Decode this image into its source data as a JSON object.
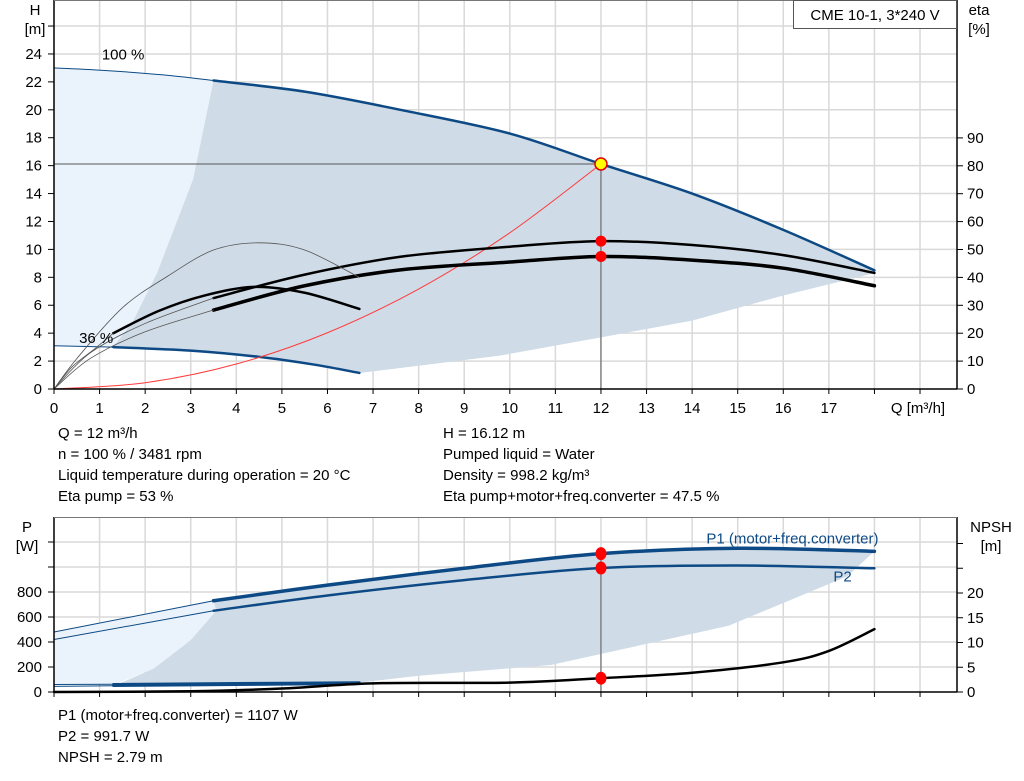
{
  "colors": {
    "curve_blue": "#0d4a85",
    "region_gray": "#cfdbe6",
    "region_light": "#eaf3fc",
    "grid": "#d9d9d9",
    "duty_point_fill": "#ffff00",
    "duty_point_stroke": "#e00000",
    "marker_red": "#ff0000",
    "system_curve": "#ff3b3b"
  },
  "model_label": "CME 10-1, 3*240 V",
  "chart_data": [
    {
      "type": "line",
      "xlabel": "Q [m³/h]",
      "ylabel_top": "H",
      "ylabel_unit": "[m]",
      "y2label_top": "eta",
      "y2label_unit": "[%]",
      "xlim": [
        0,
        19.8
      ],
      "ylim": [
        0,
        27.8
      ],
      "y2lim": [
        0,
        139
      ],
      "grid": true,
      "x_ticks": [
        "0",
        "1",
        "2",
        "3",
        "4",
        "5",
        "6",
        "7",
        "8",
        "9",
        "10",
        "11",
        "12",
        "13",
        "14",
        "15",
        "16",
        "17"
      ],
      "y_ticks": [
        "0",
        "2",
        "4",
        "6",
        "8",
        "10",
        "12",
        "14",
        "16",
        "18",
        "20",
        "22",
        "24"
      ],
      "y2_ticks": [
        "0",
        "10",
        "20",
        "30",
        "40",
        "50",
        "60",
        "70",
        "80",
        "90"
      ],
      "regions": [
        {
          "fill": "light",
          "axis": "left",
          "points": [
            [
              0,
              23
            ],
            [
              1.2,
              22.8
            ],
            [
              2.4,
              22.5
            ],
            [
              3.5,
              22.1
            ],
            [
              3.05,
              15
            ],
            [
              2.26,
              8.3
            ],
            [
              1.74,
              4.9
            ],
            [
              1.3,
              3.0
            ],
            [
              0,
              3.1
            ]
          ]
        },
        {
          "fill": "gray",
          "axis": "left",
          "points": [
            [
              3.5,
              22.1
            ],
            [
              5.5,
              21.3
            ],
            [
              7.6,
              20
            ],
            [
              10,
              18.3
            ],
            [
              12,
              16.12
            ],
            [
              14,
              14.0
            ],
            [
              16,
              11.4
            ],
            [
              18,
              8.5
            ],
            [
              18,
              8.3
            ],
            [
              16,
              6.7
            ],
            [
              15,
              5.8
            ],
            [
              14,
              4.9
            ],
            [
              12,
              3.7
            ],
            [
              9.8,
              2.4
            ],
            [
              7.6,
              1.5
            ],
            [
              6.7,
              1.15
            ],
            [
              4.5,
              2.3
            ],
            [
              3,
              2.75
            ],
            [
              1.3,
              3.0
            ],
            [
              1.74,
              4.9
            ],
            [
              2.26,
              8.3
            ],
            [
              3.05,
              15
            ]
          ]
        }
      ],
      "series": [
        {
          "name": "100 %",
          "axis": "left",
          "style": "blue-thin",
          "points": [
            [
              0,
              23
            ],
            [
              1.2,
              22.8
            ],
            [
              2.4,
              22.5
            ],
            [
              3.5,
              22.1
            ]
          ]
        },
        {
          "name": "100 %",
          "axis": "left",
          "style": "blue-thick",
          "points": [
            [
              3.5,
              22.1
            ],
            [
              5.5,
              21.3
            ],
            [
              7.6,
              20
            ],
            [
              10,
              18.3
            ],
            [
              12,
              16.12
            ],
            [
              14,
              14.0
            ],
            [
              16,
              11.4
            ],
            [
              18,
              8.5
            ]
          ]
        },
        {
          "name": "36 %",
          "axis": "left",
          "style": "blue-thin",
          "points": [
            [
              0,
              3.1
            ],
            [
              1.3,
              3.0
            ]
          ]
        },
        {
          "name": "36 %",
          "axis": "left",
          "style": "blue-thick",
          "points": [
            [
              1.3,
              3.0
            ],
            [
              3,
              2.75
            ],
            [
              4.5,
              2.3
            ],
            [
              5.7,
              1.75
            ],
            [
              6.7,
              1.15
            ]
          ]
        },
        {
          "axis": "left",
          "style": "system",
          "points": [
            [
              0,
              0
            ],
            [
              2,
              0.45
            ],
            [
              4,
              1.79
            ],
            [
              6,
              4.03
            ],
            [
              8,
              7.16
            ],
            [
              10,
              11.19
            ],
            [
              12,
              16.12
            ]
          ]
        },
        {
          "axis": "right",
          "style": "black-thick",
          "points": [
            [
              3.5,
              32.6
            ],
            [
              5.5,
              41
            ],
            [
              7.6,
              47.4
            ],
            [
              10,
              51
            ],
            [
              12,
              53
            ],
            [
              14,
              51.6
            ],
            [
              16,
              48
            ],
            [
              18,
              41.6
            ]
          ]
        },
        {
          "axis": "right",
          "style": "black-thicker",
          "points": [
            [
              3.5,
              28.3
            ],
            [
              5.5,
              37
            ],
            [
              7.6,
              42.7
            ],
            [
              10,
              45.5
            ],
            [
              12,
              47.5
            ],
            [
              14,
              46.2
            ],
            [
              16,
              43.3
            ],
            [
              18,
              37
            ]
          ]
        },
        {
          "axis": "right",
          "style": "black-thick",
          "points": [
            [
              1.3,
              20
            ],
            [
              2.3,
              28
            ],
            [
              3.3,
              33.5
            ],
            [
              4.4,
              36.6
            ],
            [
              5.5,
              34.5
            ],
            [
              6.7,
              28.7
            ]
          ]
        },
        {
          "axis": "right",
          "style": "gray-thin",
          "points": [
            [
              0,
              0
            ],
            [
              0.5,
              10.9
            ],
            [
              1.5,
              29.1
            ],
            [
              2.5,
              40.5
            ],
            [
              3.5,
              49.8
            ],
            [
              4.5,
              52.4
            ],
            [
              5.5,
              49.8
            ],
            [
              6.7,
              40
            ]
          ]
        },
        {
          "axis": "right",
          "style": "gray-thin",
          "points": [
            [
              0,
              0
            ],
            [
              0.4,
              8
            ],
            [
              0.9,
              14.5
            ],
            [
              1.3,
              20
            ]
          ]
        },
        {
          "axis": "right",
          "style": "gray-thin",
          "points": [
            [
              0,
              0
            ],
            [
              0.8,
              13
            ],
            [
              2,
              23.5
            ],
            [
              3.5,
              32.6
            ]
          ]
        },
        {
          "axis": "right",
          "style": "gray-thin",
          "points": [
            [
              0,
              0
            ],
            [
              0.8,
              11
            ],
            [
              2,
              20.5
            ],
            [
              3.5,
              28.3
            ]
          ]
        }
      ],
      "duty_point": {
        "Q": 12,
        "H": 16.12
      },
      "markers": [
        {
          "axis": "right",
          "x": 12,
          "y": 53
        },
        {
          "axis": "right",
          "x": 12,
          "y": 47.5
        }
      ],
      "curve_labels": [
        {
          "text": "100 %",
          "x": 1.05,
          "y": 23.6
        },
        {
          "text": "36 %",
          "x": 0.55,
          "y": 3.3
        }
      ]
    },
    {
      "type": "line",
      "ylabel_top": "P",
      "ylabel_unit": "[W]",
      "y2label_top": "NPSH",
      "y2label_unit": "[m]",
      "xlim": [
        0,
        19.8
      ],
      "ylim": [
        0,
        1400
      ],
      "y2lim": [
        0,
        35
      ],
      "grid": true,
      "y_ticks": [
        "0",
        "200",
        "400",
        "600",
        "800"
      ],
      "y2_ticks": [
        "0",
        "5",
        "10",
        "15",
        "20"
      ],
      "regions": [
        {
          "fill": "light",
          "axis": "left",
          "points": [
            [
              0,
              480
            ],
            [
              1.75,
              605
            ],
            [
              3.5,
              730
            ],
            [
              3.56,
              650
            ],
            [
              3.0,
              415
            ],
            [
              2.2,
              190
            ],
            [
              1.4,
              70
            ],
            [
              1.3,
              62
            ],
            [
              0,
              60
            ]
          ]
        },
        {
          "fill": "gray",
          "axis": "left",
          "points": [
            [
              3.5,
              730
            ],
            [
              6,
              855
            ],
            [
              9,
              990
            ],
            [
              12,
              1107
            ],
            [
              15,
              1150
            ],
            [
              18,
              1125
            ],
            [
              17.4,
              925
            ],
            [
              14.8,
              530
            ],
            [
              10.9,
              216
            ],
            [
              8,
              130
            ],
            [
              6.7,
              75
            ],
            [
              4,
              68
            ],
            [
              1.4,
              62
            ],
            [
              2.2,
              190
            ],
            [
              3.0,
              415
            ],
            [
              3.56,
              650
            ]
          ]
        }
      ],
      "series": [
        {
          "name": "P1 (motor+freq.converter)",
          "axis": "left",
          "style": "blue-thin",
          "points": [
            [
              0,
              480
            ],
            [
              3.5,
              730
            ]
          ]
        },
        {
          "name": "P1 (motor+freq.converter)",
          "axis": "left",
          "style": "blue-thicker",
          "points": [
            [
              3.5,
              730
            ],
            [
              6,
              855
            ],
            [
              9,
              990
            ],
            [
              12,
              1107
            ],
            [
              15,
              1150
            ],
            [
              18,
              1125
            ]
          ]
        },
        {
          "name": "P2",
          "axis": "left",
          "style": "blue-thin",
          "points": [
            [
              0,
              420
            ],
            [
              3.5,
              650
            ]
          ]
        },
        {
          "name": "P2",
          "axis": "left",
          "style": "blue-thick",
          "points": [
            [
              3.5,
              650
            ],
            [
              6,
              772
            ],
            [
              9,
              895
            ],
            [
              12,
              991.7
            ],
            [
              15,
              1012
            ],
            [
              18,
              990
            ]
          ]
        },
        {
          "axis": "left",
          "style": "blue-thin",
          "points": [
            [
              0,
              60
            ],
            [
              1.3,
              62
            ]
          ]
        },
        {
          "axis": "left",
          "style": "blue-thick",
          "points": [
            [
              1.3,
              62
            ],
            [
              4,
              70
            ],
            [
              6.7,
              76
            ]
          ]
        },
        {
          "axis": "left",
          "style": "blue-thin",
          "points": [
            [
              0,
              45
            ],
            [
              1.3,
              50
            ]
          ]
        },
        {
          "axis": "left",
          "style": "blue-thick",
          "points": [
            [
              1.3,
              50
            ],
            [
              4,
              58
            ],
            [
              6.7,
              66
            ]
          ]
        },
        {
          "axis": "right",
          "style": "black-thick",
          "points": [
            [
              0,
              0
            ],
            [
              3,
              0.15
            ],
            [
              5,
              0.7
            ],
            [
              7,
              1.75
            ],
            [
              10,
              1.9
            ],
            [
              12,
              2.79
            ],
            [
              14,
              3.9
            ],
            [
              16,
              6
            ],
            [
              17,
              8.3
            ],
            [
              18,
              12.7
            ]
          ]
        }
      ],
      "markers": [
        {
          "axis": "left",
          "x": 12,
          "y": 1107
        },
        {
          "axis": "left",
          "x": 12,
          "y": 991.7
        },
        {
          "axis": "right",
          "x": 12,
          "y": 2.79
        }
      ],
      "curve_labels": [
        {
          "text": "P1 (motor+freq.converter)",
          "x": 16.2,
          "y": 1190
        },
        {
          "text": "P2",
          "x": 17.3,
          "y": 885
        }
      ]
    }
  ],
  "info_top": {
    "left": [
      "Q = 12 m³/h",
      "n = 100 % / 3481 rpm",
      "Liquid temperature during operation = 20 °C",
      "Eta pump = 53 %"
    ],
    "right": [
      "H = 16.12 m",
      "Pumped liquid = Water",
      "Density = 998.2 kg/m³",
      "Eta pump+motor+freq.converter = 47.5 %"
    ]
  },
  "info_bottom": [
    "P1 (motor+freq.converter) = 1107 W",
    "P2 = 991.7 W",
    "NPSH = 2.79 m"
  ]
}
